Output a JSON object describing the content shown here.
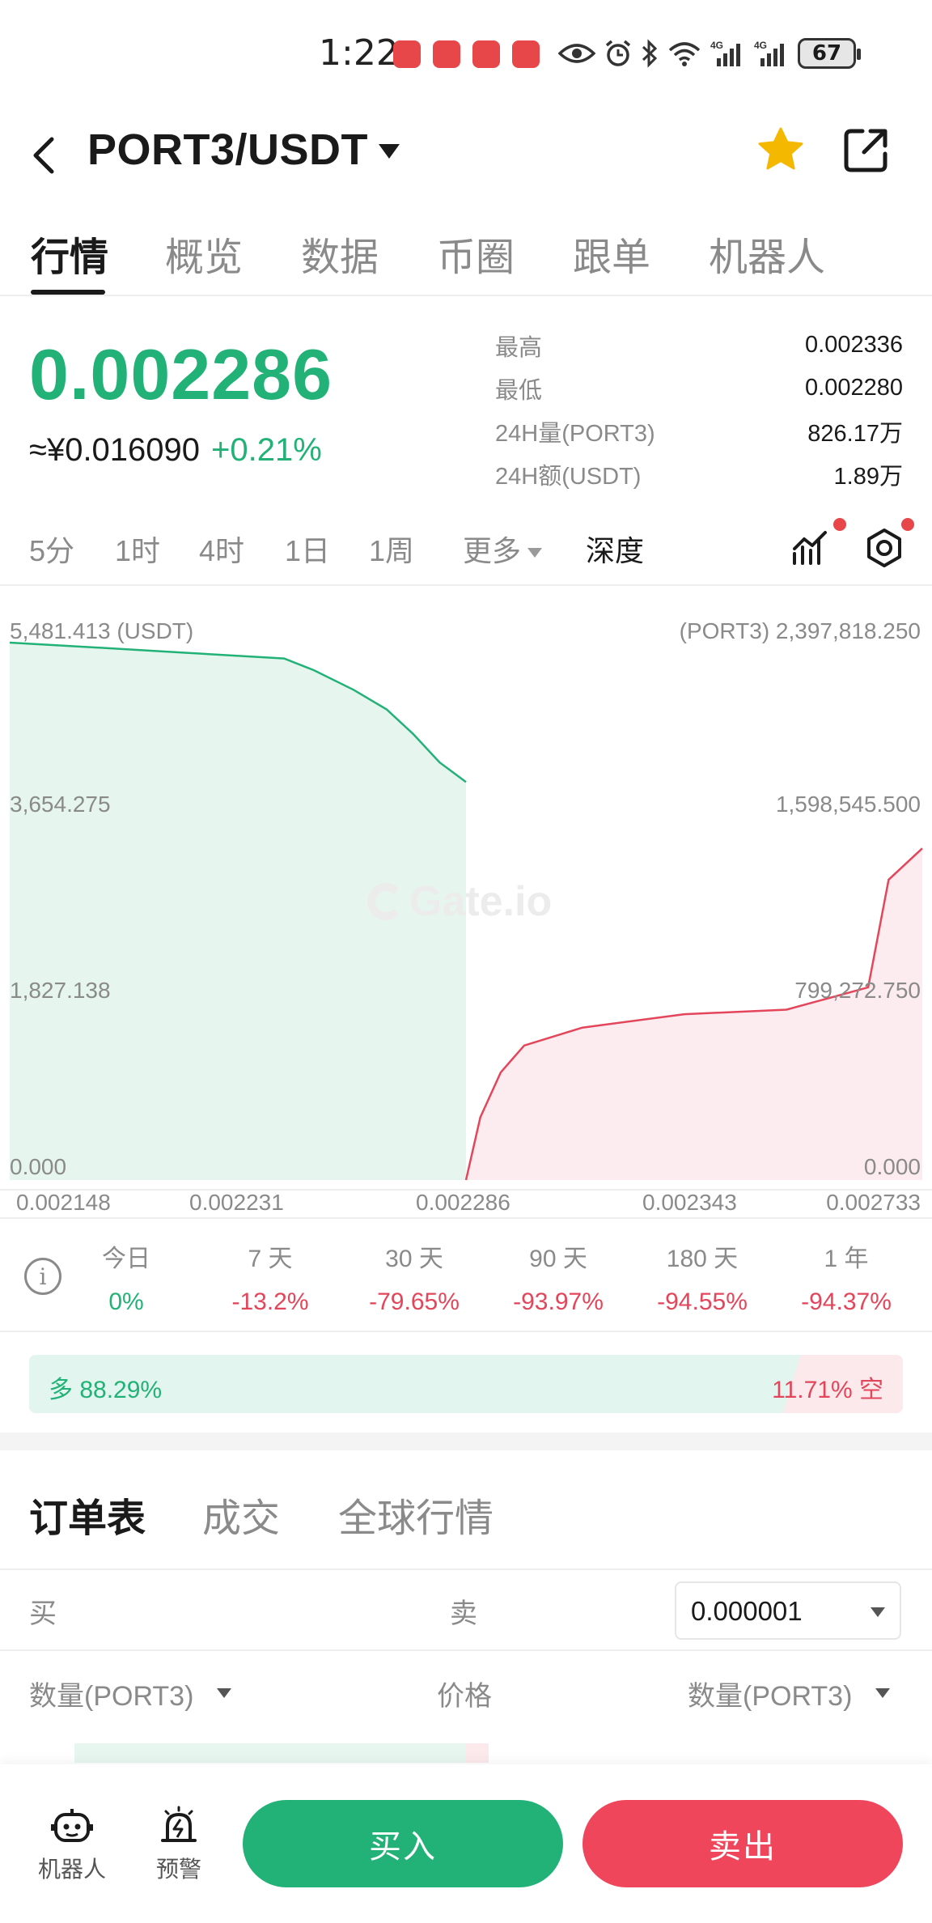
{
  "status_bar": {
    "time": "1:22",
    "battery": "67"
  },
  "header": {
    "pair": "PORT3/USDT"
  },
  "tabs": [
    "行情",
    "概览",
    "数据",
    "币圈",
    "跟单",
    "机器人"
  ],
  "ticker": {
    "last_price": "0.002286",
    "cny_price": "≈¥0.016090",
    "change": "+0.21%",
    "stats": [
      {
        "label": "最高",
        "value": "0.002336"
      },
      {
        "label": "最低",
        "value": "0.002280"
      },
      {
        "label": "24H量(PORT3)",
        "value": "826.17万"
      },
      {
        "label": "24H额(USDT)",
        "value": "1.89万"
      }
    ]
  },
  "intervals": {
    "items": [
      "5分",
      "1时",
      "4时",
      "1日",
      "1周"
    ],
    "more": "更多",
    "depth": "深度"
  },
  "depth_chart": {
    "left_axis": [
      "5,481.413 (USDT)",
      "3,654.275",
      "1,827.138",
      "0.000"
    ],
    "right_axis": [
      "(PORT3) 2,397,818.250",
      "1,598,545.500",
      "799,272.750",
      "0.000"
    ],
    "x_axis": [
      "0.002148",
      "0.002231",
      "0.002286",
      "0.002343",
      "0.002733"
    ],
    "watermark": "Gate.io"
  },
  "chart_data": {
    "type": "area",
    "xlabel": "",
    "ylabel": "",
    "series": [
      {
        "name": "",
        "color": "#22b277",
        "x": [
          0.002148,
          0.002175,
          0.0022,
          0.002231,
          0.00224,
          0.002252,
          0.002262,
          0.00227,
          0.002278,
          0.002286
        ],
        "y": [
          5481.4,
          5430,
          5380,
          5320,
          5200,
          5000,
          4800,
          4550,
          4260,
          4060
        ]
      },
      {
        "name": "",
        "color": "#e3465b",
        "x": [
          0.002286,
          0.0023,
          0.00232,
          0.002343,
          0.0024,
          0.0025,
          0.0026,
          0.00268,
          0.0027,
          0.002733
        ],
        "y": [
          0,
          280000,
          480000,
          600000,
          680000,
          740000,
          760000,
          860000,
          1340000,
          1480000
        ]
      }
    ],
    "ylim_left": [
      0,
      5481.413
    ],
    "ylim_right": [
      0,
      2397818.25
    ],
    "xlim": [
      0.002148,
      0.002733
    ]
  },
  "performance": [
    {
      "label": "今日",
      "value": "0%",
      "color": "green"
    },
    {
      "label": "7 天",
      "value": "-13.2%",
      "color": "red"
    },
    {
      "label": "30 天",
      "value": "-79.65%",
      "color": "red"
    },
    {
      "label": "90 天",
      "value": "-93.97%",
      "color": "red"
    },
    {
      "label": "180 天",
      "value": "-94.55%",
      "color": "red"
    },
    {
      "label": "1 年",
      "value": "-94.37%",
      "color": "red"
    }
  ],
  "long_short": {
    "long_label": "多 88.29%",
    "short_label": "11.71% 空",
    "long_fraction": 0.8829
  },
  "orderbook": {
    "tabs": [
      "订单表",
      "成交",
      "全球行情"
    ],
    "buy": "买",
    "sell": "卖",
    "precision": "0.000001",
    "col_qty_left": "数量(PORT3)",
    "col_price": "价格",
    "col_qty_right": "数量(PORT3)"
  },
  "bottom_nav": {
    "robot": "机器人",
    "alert": "预警",
    "buy": "买入",
    "sell": "卖出"
  },
  "colors": {
    "green": "#22b277",
    "red": "#e3465b",
    "star": "#f5b800"
  }
}
